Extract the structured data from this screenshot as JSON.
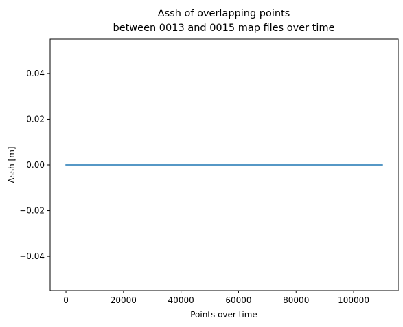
{
  "chart_data": {
    "type": "line",
    "title": "Δssh of overlapping points",
    "subtitle": "between 0013 and 0015 map files over time",
    "xlabel": "Points over time",
    "ylabel": "Δssh [m]",
    "xlim": [
      -5500,
      115500
    ],
    "ylim": [
      -0.055,
      0.055
    ],
    "x_ticks": [
      0,
      20000,
      40000,
      60000,
      80000,
      100000
    ],
    "x_tick_labels": [
      "0",
      "20000",
      "40000",
      "60000",
      "80000",
      "100000"
    ],
    "y_ticks": [
      -0.04,
      -0.02,
      0.0,
      0.02,
      0.04
    ],
    "y_tick_labels": [
      "−0.04",
      "−0.02",
      "0.00",
      "0.02",
      "0.04"
    ],
    "grid": false,
    "series": [
      {
        "color": "#1f77b4",
        "x": [
          0,
          110000
        ],
        "y": [
          0.0,
          0.0
        ]
      }
    ]
  }
}
